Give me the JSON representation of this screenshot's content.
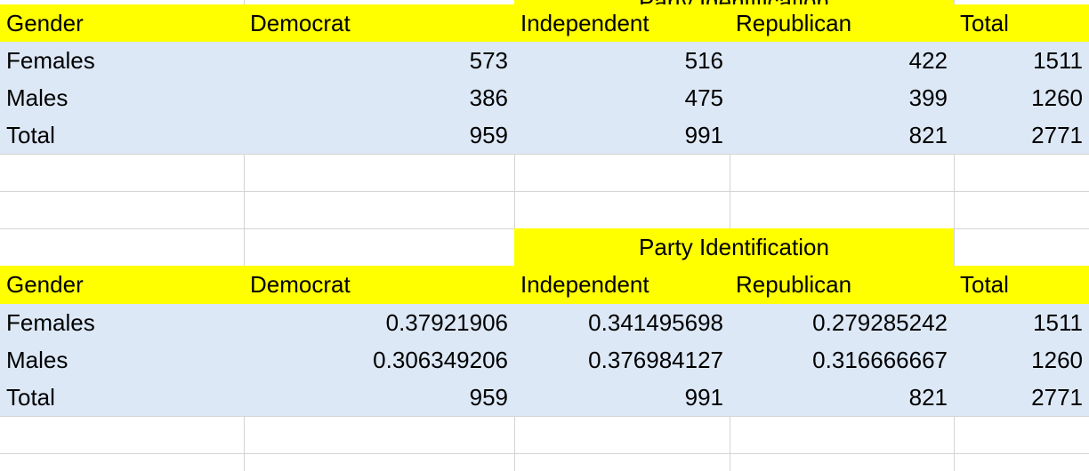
{
  "table1": {
    "group_header": "Party Identification",
    "header": [
      "Gender",
      "Democrat",
      "Independent",
      "Republican",
      "Total"
    ],
    "rows": [
      [
        "Females",
        "573",
        "516",
        "422",
        "1511"
      ],
      [
        "Males",
        "386",
        "475",
        "399",
        "1260"
      ],
      [
        "Total",
        "959",
        "991",
        "821",
        "2771"
      ]
    ]
  },
  "table2": {
    "group_header": "Party Identification",
    "header": [
      "Gender",
      "Democrat",
      "Independent",
      "Republican",
      "Total"
    ],
    "rows": [
      [
        "Females",
        "0.37921906",
        "0.341495698",
        "0.279285242",
        "1511"
      ],
      [
        "Males",
        "0.306349206",
        "0.376984127",
        "0.316666667",
        "1260"
      ],
      [
        "Total",
        "959",
        "991",
        "821",
        "2771"
      ]
    ]
  },
  "colors": {
    "header_fill": "#ffff00",
    "body_fill": "#dde8f6",
    "gridline": "#d4d4d4"
  }
}
